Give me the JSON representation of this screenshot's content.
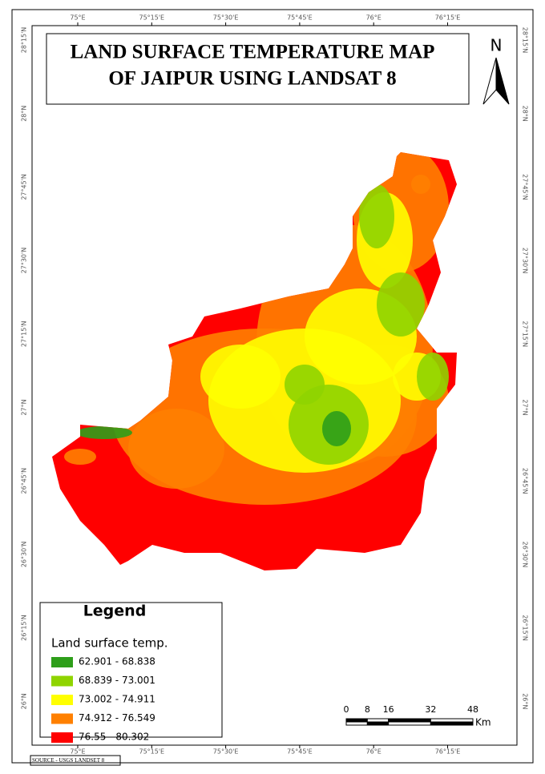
{
  "title": {
    "line1": "LAND SURFACE TEMPERATURE MAP",
    "line2": "OF JAIPUR USING LANDSAT 8"
  },
  "north": "N",
  "longitude_labels": [
    "75°E",
    "75°15'E",
    "75°30'E",
    "75°45'E",
    "76°E",
    "76°15'E"
  ],
  "latitude_labels": [
    "28°15'N",
    "28°N",
    "27°45'N",
    "27°30'N",
    "27°15'N",
    "27°N",
    "26°45'N",
    "26°30'N",
    "26°15'N",
    "26°N"
  ],
  "legend": {
    "title": "Legend",
    "subtitle": "Land surface temp.",
    "items": [
      {
        "label": "62.901 - 68.838",
        "color": "#2e9e1a"
      },
      {
        "label": "68.839 - 73.001",
        "color": "#8fd400"
      },
      {
        "label": "73.002 - 74.911",
        "color": "#ffff00"
      },
      {
        "label": "74.912 - 76.549",
        "color": "#ff8000"
      },
      {
        "label": "76.55 - 80.302",
        "color": "#ff0000"
      }
    ]
  },
  "scale_bar": {
    "ticks": [
      0,
      8,
      16,
      32,
      48
    ],
    "unit": "Km"
  },
  "source": "SOURCE - USGS LANDSET 8"
}
